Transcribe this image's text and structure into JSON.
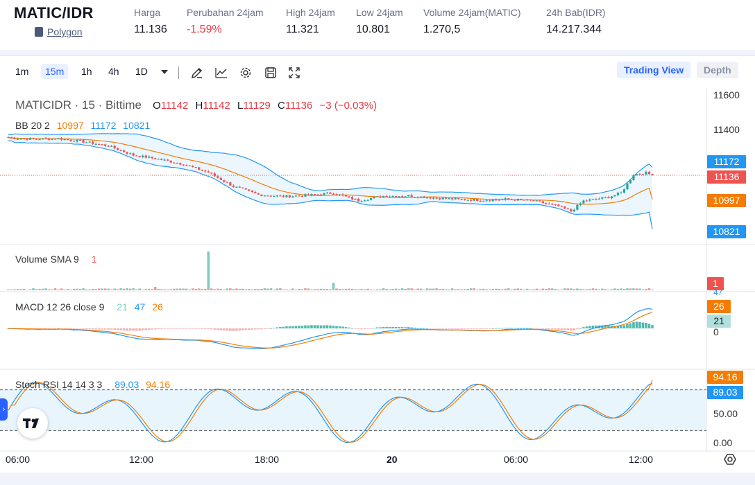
{
  "ticker": {
    "pair": "MATIC/IDR",
    "coin": "Polygon",
    "stats": [
      {
        "label": "Harga",
        "value": "11.136",
        "negative": false
      },
      {
        "label": "Perubahan 24jam",
        "value": "-1.59%",
        "negative": true
      },
      {
        "label": "High 24jam",
        "value": "11.321",
        "negative": false
      },
      {
        "label": "Low 24jam",
        "value": "10.801",
        "negative": false
      },
      {
        "label": "Volume 24jam(MATIC)",
        "value": "1.270,5",
        "negative": false
      },
      {
        "label": "24h Bab(IDR)",
        "value": "14.217.344",
        "negative": false
      }
    ]
  },
  "toolbar": {
    "intervals": [
      "1m",
      "15m",
      "1h",
      "4h",
      "1D"
    ],
    "active_interval": "15m",
    "tools": [
      "pencil-icon",
      "indicator-icon",
      "settings-icon",
      "save-icon",
      "fullscreen-icon"
    ],
    "view_trading": "Trading View",
    "view_depth": "Depth"
  },
  "legend": {
    "symbol": "MATICIDR · 15 · Bittime",
    "o_label": "O",
    "o": "11142",
    "h_label": "H",
    "h": "11142",
    "l_label": "L",
    "l": "11129",
    "c_label": "C",
    "c": "11136",
    "change": "−3 (−0.03%)",
    "bb": {
      "name": "BB 20 2",
      "basis": "10997",
      "upper": "11172",
      "lower": "10821"
    },
    "volume": {
      "name": "Volume SMA 9",
      "value": "1"
    },
    "macd": {
      "name": "MACD 12 26 close 9",
      "hist": "21",
      "macd": "47",
      "signal": "26"
    },
    "stoch": {
      "name": "Stoch RSI 14 14 3 3",
      "k": "89.03",
      "d": "94.16"
    }
  },
  "axis": {
    "price_ticks": [
      "11600",
      "11400"
    ],
    "price_tags": {
      "upper": "11172",
      "last": "11136",
      "basis": "10997",
      "lower": "10821"
    },
    "volume_tag": "1",
    "macd_tags": {
      "zero": "0",
      "top": "47",
      "signal": "26",
      "hist": "21"
    },
    "stoch_tags": {
      "d": "94.16",
      "k": "89.03",
      "mid": "50.00",
      "zero": "0.00"
    },
    "time_labels": [
      "06:00",
      "12:00",
      "18:00",
      "20",
      "06:00",
      "12:00"
    ]
  },
  "colors": {
    "up": "#26a69a",
    "down": "#ef5350",
    "accent": "#2962ff",
    "bb_upper": "#2196f3",
    "bb_basis": "#f57c00",
    "macd": "#2196f3",
    "signal": "#f57c00"
  },
  "chart_data": {
    "type": "candlestick",
    "interval": "15",
    "last_close": 11136,
    "bollinger": {
      "upper": 11172,
      "basis": 10997,
      "lower": 10821
    },
    "price_anchors": [
      [
        0,
        11353
      ],
      [
        8,
        11345
      ],
      [
        16,
        11348
      ],
      [
        24,
        11330
      ],
      [
        32,
        11306
      ],
      [
        40,
        11252
      ],
      [
        48,
        11230
      ],
      [
        56,
        11200
      ],
      [
        64,
        11152
      ],
      [
        72,
        11072
      ],
      [
        80,
        11024
      ],
      [
        88,
        11014
      ],
      [
        96,
        11021
      ],
      [
        104,
        11034
      ],
      [
        112,
        10990
      ],
      [
        120,
        11016
      ],
      [
        128,
        11018
      ],
      [
        136,
        11006
      ],
      [
        144,
        10997
      ],
      [
        152,
        10993
      ],
      [
        160,
        10998
      ],
      [
        168,
        10988
      ],
      [
        176,
        10957
      ],
      [
        180,
        10928
      ],
      [
        184,
        10988
      ],
      [
        192,
        11010
      ],
      [
        196,
        11034
      ],
      [
        200,
        11140
      ],
      [
        204,
        11150
      ],
      [
        206,
        11136
      ]
    ],
    "stoch": {
      "k": 89.03,
      "d": 94.16
    },
    "macd": {
      "macd": 47,
      "signal": 26,
      "hist": 21
    }
  }
}
